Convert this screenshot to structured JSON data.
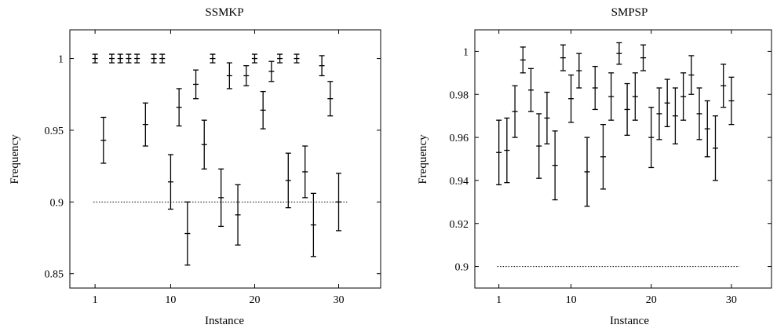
{
  "chart_data": [
    {
      "type": "scatter",
      "title": "SSMKP",
      "xlabel": "Instance",
      "ylabel": "Frequency",
      "xlim": [
        -2,
        35
      ],
      "ylim": [
        0.84,
        1.02
      ],
      "xticks": [
        1,
        10,
        20,
        30
      ],
      "yticks": [
        0.85,
        0.9,
        0.95,
        1
      ],
      "ytick_labels": [
        "0.85",
        "0.9",
        "0.95",
        "1"
      ],
      "reference_line": 0.9,
      "grid": false,
      "series": [
        {
          "x": [
            1,
            2,
            3,
            4,
            5,
            6,
            7,
            8,
            9,
            10,
            11,
            12,
            13,
            14,
            15,
            16,
            17,
            18,
            19,
            20,
            21,
            22,
            23,
            24,
            25,
            26,
            27,
            28,
            29,
            30
          ],
          "y": [
            1.0,
            0.943,
            1.0,
            1.0,
            1.0,
            1.0,
            0.954,
            1.0,
            1.0,
            0.914,
            0.966,
            0.878,
            0.982,
            0.94,
            1.0,
            0.903,
            0.988,
            0.891,
            0.988,
            1.0,
            0.964,
            0.991,
            1.0,
            0.915,
            1.0,
            0.921,
            0.884,
            0.995,
            0.972,
            0.9
          ],
          "yerr": [
            0.003,
            0.016,
            0.003,
            0.003,
            0.003,
            0.003,
            0.015,
            0.003,
            0.003,
            0.019,
            0.013,
            0.022,
            0.01,
            0.017,
            0.003,
            0.02,
            0.009,
            0.021,
            0.007,
            0.003,
            0.013,
            0.007,
            0.003,
            0.019,
            0.003,
            0.018,
            0.022,
            0.007,
            0.012,
            0.02
          ]
        }
      ]
    },
    {
      "type": "scatter",
      "title": "SMPSP",
      "xlabel": "Instance",
      "ylabel": "Frequency",
      "xlim": [
        -2,
        35
      ],
      "ylim": [
        0.89,
        1.01
      ],
      "xticks": [
        1,
        10,
        20,
        30
      ],
      "yticks": [
        0.9,
        0.92,
        0.94,
        0.96,
        0.98,
        1
      ],
      "ytick_labels": [
        "0.9",
        "0.92",
        "0.94",
        "0.96",
        "0.98",
        "1"
      ],
      "reference_line": 0.9,
      "grid": false,
      "series": [
        {
          "x": [
            1,
            2,
            3,
            4,
            5,
            6,
            7,
            8,
            9,
            10,
            11,
            12,
            13,
            14,
            15,
            16,
            17,
            18,
            19,
            20,
            21,
            22,
            23,
            24,
            25,
            26,
            27,
            28,
            29,
            30
          ],
          "y": [
            0.953,
            0.954,
            0.972,
            0.996,
            0.982,
            0.956,
            0.969,
            0.947,
            0.997,
            0.978,
            0.991,
            0.944,
            0.983,
            0.951,
            0.979,
            0.999,
            0.973,
            0.979,
            0.997,
            0.96,
            0.971,
            0.976,
            0.97,
            0.979,
            0.989,
            0.971,
            0.964,
            0.955,
            0.984,
            0.977
          ],
          "yerr": [
            0.015,
            0.015,
            0.012,
            0.006,
            0.01,
            0.015,
            0.012,
            0.016,
            0.006,
            0.011,
            0.008,
            0.016,
            0.01,
            0.015,
            0.011,
            0.005,
            0.012,
            0.011,
            0.006,
            0.014,
            0.012,
            0.011,
            0.013,
            0.011,
            0.009,
            0.012,
            0.013,
            0.015,
            0.01,
            0.011
          ]
        }
      ]
    }
  ]
}
